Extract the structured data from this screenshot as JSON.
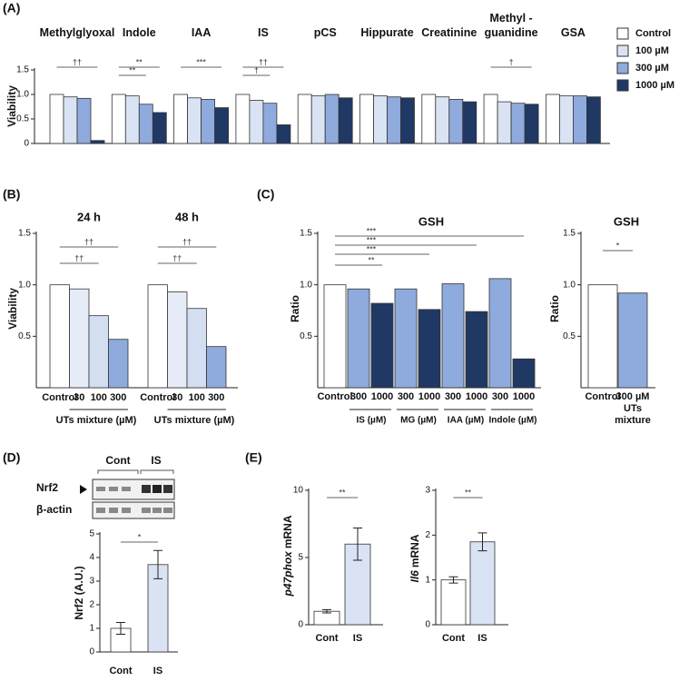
{
  "chart_data": [
    {
      "type": "bar",
      "panel": "(A)",
      "ylabel": "Viability",
      "categories": [
        "Methylglyoxal",
        "Indole",
        "IAA",
        "IS",
        "pCS",
        "Hippurate",
        "Creatinine",
        "Methyl -guanidine",
        "GSA"
      ],
      "series": [
        {
          "name": "Control",
          "color": "#ffffff",
          "values": [
            1.0,
            1.0,
            1.0,
            1.0,
            1.0,
            1.0,
            1.0,
            1.0,
            1.0
          ]
        },
        {
          "name": "100 µM",
          "color": "#dae3f3",
          "values": [
            0.95,
            0.97,
            0.93,
            0.88,
            0.97,
            0.97,
            0.95,
            0.85,
            0.97
          ]
        },
        {
          "name": "300 µM",
          "color": "#8faadc",
          "values": [
            0.92,
            0.8,
            0.9,
            0.82,
            1.0,
            0.95,
            0.9,
            0.82,
            0.97
          ]
        },
        {
          "name": "1000 µM",
          "color": "#203864",
          "values": [
            0.06,
            0.63,
            0.73,
            0.38,
            0.93,
            0.93,
            0.85,
            0.8,
            0.95
          ]
        }
      ],
      "ylim": [
        0,
        1.5
      ],
      "yticks": [
        0,
        0.5,
        {
          "value": 1,
          "label": "1.0"
        },
        1.5
      ],
      "significance": [
        "††",
        "**",
        "**",
        "***",
        "††",
        "†",
        "†"
      ]
    },
    {
      "type": "bar",
      "panel": "(B)",
      "ylabel": "Viability",
      "categories": [
        "Control",
        "30",
        "100",
        "300"
      ],
      "colors": [
        "#ffffff",
        "#e6ecf7",
        "#d3def1",
        "#8faadc"
      ],
      "series": [
        {
          "name": "24 h",
          "values": [
            1.0,
            0.96,
            0.7,
            0.47
          ]
        },
        {
          "name": "48 h",
          "values": [
            1.0,
            0.93,
            0.77,
            0.4
          ]
        }
      ],
      "xlabel": "UTs mixture (µM)",
      "ylim": [
        0,
        1.5
      ],
      "yticks": [
        0.5,
        {
          "value": 1,
          "label": "1.0"
        },
        1.5
      ],
      "significance": [
        [
          "††",
          "††"
        ],
        [
          "††",
          "††"
        ]
      ]
    },
    {
      "type": "bar",
      "panel": "(C)",
      "title": "GSH",
      "ylabel": "Ratio",
      "categories": [
        "Control",
        "300",
        "1000",
        "300",
        "1000",
        "300",
        "1000",
        "300",
        "1000"
      ],
      "groups": [
        "IS (µM)",
        "MG (µM)",
        "IAA  (µM)",
        "Indole (µM)"
      ],
      "colors": [
        "#ffffff",
        "#8faadc",
        "#203864",
        "#8faadc",
        "#203864",
        "#8faadc",
        "#203864",
        "#8faadc",
        "#203864"
      ],
      "values": [
        1.0,
        0.96,
        0.82,
        0.96,
        0.76,
        1.01,
        0.74,
        1.06,
        0.28
      ],
      "ylim": [
        0,
        1.5
      ],
      "yticks": [
        0.5,
        {
          "value": 1,
          "label": "1.0"
        },
        1.5
      ],
      "significance": [
        "***",
        "***",
        "***",
        "**"
      ]
    },
    {
      "type": "bar",
      "title": "GSH",
      "ylabel": "Ratio",
      "categories": [
        "Control",
        "300 µM UTs mixture"
      ],
      "colors": [
        "#ffffff",
        "#8faadc"
      ],
      "values": [
        1.0,
        0.92
      ],
      "ylim": [
        0,
        1.5
      ],
      "yticks": [
        0.5,
        {
          "value": 1,
          "label": "1.0"
        },
        1.5
      ],
      "significance": [
        "*"
      ]
    },
    {
      "type": "bar",
      "panel": "(D)",
      "blot": {
        "lanes": [
          "Cont",
          "IS"
        ],
        "rows": [
          "Nrf2",
          "β-actin"
        ]
      },
      "ylabel": "Nrf2 (A.U.)",
      "categories": [
        "Cont",
        "IS"
      ],
      "colors": [
        "#ffffff",
        "#dae3f3"
      ],
      "values": [
        1.0,
        3.7
      ],
      "errors": [
        0.25,
        0.6
      ],
      "ylim": [
        0,
        5
      ],
      "yticks": [
        0,
        1,
        2,
        3,
        4,
        5
      ],
      "significance": [
        "*"
      ]
    },
    {
      "type": "bar",
      "panel": "(E)",
      "ylabel_parts": [
        "p47phox",
        "mRNA"
      ],
      "categories": [
        "Cont",
        "IS"
      ],
      "colors": [
        "#ffffff",
        "#dae3f3"
      ],
      "values": [
        1.0,
        6.0
      ],
      "errors": [
        0.12,
        1.2
      ],
      "ylim": [
        0,
        10
      ],
      "yticks": [
        0,
        5,
        10
      ],
      "significance": [
        "**"
      ]
    },
    {
      "type": "bar",
      "ylabel_parts": [
        "Il6",
        "mRNA"
      ],
      "categories": [
        "Cont",
        "IS"
      ],
      "colors": [
        "#ffffff",
        "#dae3f3"
      ],
      "values": [
        1.0,
        1.85
      ],
      "errors": [
        0.07,
        0.2
      ],
      "ylim": [
        0,
        3
      ],
      "yticks": [
        0,
        1,
        2,
        3
      ],
      "significance": [
        "**"
      ]
    }
  ]
}
